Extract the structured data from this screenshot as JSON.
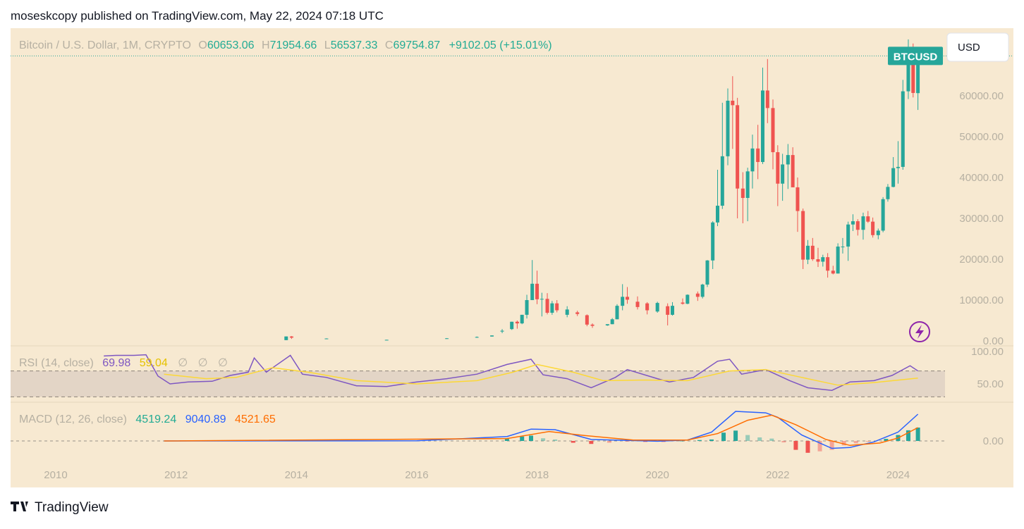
{
  "header": {
    "byline": "moseskcopy published on TradingView.com, May 22, 2024 07:18 UTC"
  },
  "toolbar": {
    "currency": "USD"
  },
  "footer": {
    "brand": "TradingView"
  },
  "chart_data": [
    {
      "type": "candlestick",
      "title": "Bitcoin / U.S. Dollar, 1M, CRYPTO",
      "symbol_label": "BTCUSD",
      "ohlc_labels": [
        "O",
        "H",
        "L",
        "C"
      ],
      "change_label": "+9102.05 (+15.01%)",
      "up_color": "#26a69a",
      "down_color": "#ef5350",
      "xlim": [
        2009.25,
        2024.78
      ],
      "xticks": [
        2010,
        2012,
        2014,
        2016,
        2018,
        2020,
        2022,
        2024
      ],
      "ylim": [
        -1030,
        76550
      ],
      "yticks": [
        {
          "value": 0,
          "label": "0.00"
        },
        {
          "value": 10000,
          "label": "10000.00"
        },
        {
          "value": 20000,
          "label": "20000.00"
        },
        {
          "value": 30000,
          "label": "30000.00"
        },
        {
          "value": 40000,
          "label": "40000.00"
        },
        {
          "value": 50000,
          "label": "50000.00"
        },
        {
          "value": 60000,
          "label": "60000.00"
        }
      ],
      "x": [
        2013.83,
        2013.92,
        2014.5,
        2015.5,
        2016.5,
        2017.0,
        2017.25,
        2017.42,
        2017.58,
        2017.67,
        2017.75,
        2017.83,
        2017.92,
        2018.0,
        2018.08,
        2018.17,
        2018.25,
        2018.33,
        2018.5,
        2018.67,
        2018.83,
        2018.92,
        2019.17,
        2019.25,
        2019.33,
        2019.42,
        2019.5,
        2019.67,
        2019.83,
        2020.0,
        2020.17,
        2020.25,
        2020.42,
        2020.5,
        2020.67,
        2020.75,
        2020.83,
        2020.92,
        2021.0,
        2021.08,
        2021.17,
        2021.25,
        2021.33,
        2021.42,
        2021.5,
        2021.58,
        2021.67,
        2021.75,
        2021.83,
        2021.92,
        2022.0,
        2022.08,
        2022.17,
        2022.25,
        2022.33,
        2022.42,
        2022.5,
        2022.58,
        2022.67,
        2022.75,
        2022.83,
        2022.92,
        2023.0,
        2023.08,
        2023.17,
        2023.25,
        2023.33,
        2023.42,
        2023.5,
        2023.58,
        2023.67,
        2023.75,
        2023.83,
        2023.92,
        2024.0,
        2024.08,
        2024.17,
        2024.25,
        2024.33
      ],
      "open": [
        200,
        1100,
        600,
        260,
        600,
        970,
        1080,
        2300,
        2900,
        4700,
        4300,
        6400,
        10000,
        14000,
        10200,
        10300,
        6900,
        9200,
        6400,
        7000,
        6300,
        4000,
        3800,
        4100,
        5300,
        8600,
        10800,
        9600,
        9200,
        7200,
        8500,
        6400,
        9400,
        9100,
        11600,
        10800,
        13800,
        19700,
        29000,
        33100,
        45200,
        58800,
        57700,
        37300,
        35000,
        41500,
        47100,
        43800,
        61300,
        57000,
        46200,
        38500,
        43200,
        45500,
        37600,
        31800,
        19900,
        23300,
        20000,
        19400,
        20500,
        17200,
        16500,
        23100,
        23100,
        28500,
        29300,
        27200,
        30500,
        29200,
        25900,
        27000,
        34700,
        37700,
        42300,
        42600,
        61100,
        71300,
        60653.06
      ],
      "high": [
        1100,
        1200,
        650,
        300,
        700,
        1100,
        1350,
        2900,
        4700,
        5000,
        6400,
        11300,
        19800,
        17200,
        11800,
        11700,
        9800,
        10000,
        8500,
        7400,
        6500,
        4300,
        4100,
        5600,
        9000,
        13900,
        13200,
        10900,
        9500,
        9600,
        9200,
        9500,
        10400,
        11400,
        12100,
        14000,
        19800,
        29300,
        41900,
        58300,
        61800,
        64800,
        59500,
        41300,
        42400,
        50500,
        52900,
        66900,
        69000,
        59100,
        47900,
        45800,
        48200,
        47400,
        40000,
        32400,
        24700,
        25200,
        22800,
        21100,
        21500,
        18400,
        23900,
        25200,
        29200,
        31000,
        29800,
        31400,
        31800,
        30200,
        27500,
        35200,
        38400,
        45000,
        48900,
        63900,
        73800,
        72800,
        71954.66
      ],
      "low": [
        200,
        500,
        550,
        250,
        500,
        750,
        1080,
        1900,
        2700,
        3000,
        4100,
        5500,
        10000,
        9000,
        6000,
        6500,
        6400,
        7000,
        5800,
        6100,
        3600,
        3200,
        3700,
        4100,
        5300,
        7500,
        9100,
        7700,
        6500,
        6900,
        3800,
        6200,
        8900,
        9000,
        9800,
        10400,
        13200,
        17600,
        28100,
        32300,
        43000,
        47000,
        30000,
        28800,
        29300,
        37300,
        39600,
        43300,
        53300,
        42000,
        33000,
        34300,
        37200,
        37700,
        26700,
        17600,
        18800,
        19600,
        18100,
        18200,
        15500,
        16300,
        16500,
        21400,
        19600,
        26900,
        25800,
        24800,
        28900,
        25300,
        24900,
        26600,
        34100,
        37600,
        38500,
        41900,
        59200,
        59600,
        56537.33
      ],
      "close": [
        1100,
        800,
        600,
        280,
        650,
        970,
        1350,
        2500,
        4700,
        4300,
        6400,
        10000,
        14000,
        10200,
        10300,
        6900,
        9200,
        7500,
        7700,
        6600,
        4000,
        3700,
        4100,
        5300,
        8600,
        10800,
        10100,
        8300,
        7500,
        9300,
        6400,
        8600,
        9100,
        11300,
        10800,
        13800,
        19700,
        29000,
        33100,
        45200,
        58800,
        57700,
        37300,
        35000,
        41500,
        47100,
        43800,
        61300,
        57000,
        46200,
        38500,
        43200,
        45500,
        37600,
        31800,
        19900,
        23300,
        20000,
        19400,
        20500,
        17200,
        16500,
        23100,
        23100,
        28500,
        29300,
        27200,
        30500,
        29200,
        25900,
        27000,
        34700,
        37700,
        42300,
        42600,
        61100,
        71300,
        60700,
        69754.87
      ]
    },
    {
      "type": "line",
      "title": "RSI (14, close)",
      "legend_extra": [
        "∅",
        "∅",
        "∅"
      ],
      "ylim": [
        22.8,
        107.6
      ],
      "yticks": [
        {
          "value": 50,
          "label": "50.00"
        },
        {
          "value": 100,
          "label": "100.00"
        }
      ],
      "levels": [
        70,
        30
      ],
      "band_color": "#e3d5c6",
      "series": [
        {
          "color": "#7e57c2",
          "x": [
            2010.8,
            2011.0,
            2011.3,
            2011.5,
            2011.7,
            2011.9,
            2012.2,
            2012.6,
            2012.9,
            2013.2,
            2013.3,
            2013.5,
            2013.9,
            2014.1,
            2014.5,
            2015.0,
            2015.5,
            2016.0,
            2016.5,
            2017.0,
            2017.5,
            2017.9,
            2018.1,
            2018.5,
            2018.9,
            2019.3,
            2019.5,
            2020.0,
            2020.2,
            2020.6,
            2021.0,
            2021.2,
            2021.4,
            2021.8,
            2022.2,
            2022.5,
            2022.9,
            2023.2,
            2023.6,
            2023.9,
            2024.2,
            2024.33
          ],
          "values": [
            93,
            94,
            94,
            95,
            62,
            50,
            53,
            54,
            63,
            68,
            90,
            68,
            94,
            65,
            60,
            47,
            46,
            53,
            58,
            65,
            80,
            88,
            64,
            58,
            44,
            60,
            72,
            58,
            53,
            60,
            85,
            88,
            65,
            72,
            55,
            44,
            40,
            53,
            55,
            63,
            78,
            69.98
          ]
        },
        {
          "color": "#fdd835",
          "x": [
            2011.8,
            2012.5,
            2013.0,
            2013.6,
            2014.2,
            2015.0,
            2016.0,
            2017.0,
            2017.6,
            2018.0,
            2018.6,
            2019.1,
            2019.8,
            2020.5,
            2021.2,
            2021.8,
            2022.4,
            2023.0,
            2023.6,
            2024.33
          ],
          "values": [
            65,
            58,
            60,
            75,
            68,
            55,
            50,
            55,
            68,
            80,
            68,
            55,
            56,
            55,
            70,
            72,
            60,
            48,
            52,
            59.04
          ]
        }
      ]
    },
    {
      "type": "line",
      "title": "MACD (12, 26, close)",
      "ylim": [
        -6900,
        12850
      ],
      "yticks": [
        {
          "value": 0,
          "label": "0.00"
        }
      ],
      "histogram": {
        "up_color": "#26a69a",
        "down_color": "#ef5350",
        "x": [
          2017.5,
          2017.75,
          2017.9,
          2018.1,
          2018.3,
          2018.6,
          2018.9,
          2019.2,
          2019.5,
          2019.8,
          2020.1,
          2020.4,
          2020.7,
          2020.9,
          2021.1,
          2021.3,
          2021.5,
          2021.7,
          2021.9,
          2022.1,
          2022.3,
          2022.5,
          2022.7,
          2022.9,
          2023.1,
          2023.3,
          2023.5,
          2023.8,
          2024.0,
          2024.17,
          2024.33
        ],
        "values": [
          700,
          1500,
          1800,
          900,
          500,
          -600,
          -1000,
          -600,
          -100,
          -300,
          -300,
          0,
          300,
          500,
          2800,
          3500,
          2000,
          1200,
          800,
          -500,
          -3000,
          -4000,
          -3500,
          -3000,
          -1500,
          -800,
          -200,
          700,
          2000,
          3600,
          4519.24
        ]
      },
      "series": [
        {
          "color": "#2962ff",
          "x": [
            2011.8,
            2016.0,
            2017.5,
            2017.9,
            2018.3,
            2018.9,
            2019.5,
            2020.0,
            2020.5,
            2020.9,
            2021.3,
            2021.8,
            2022.0,
            2022.4,
            2022.9,
            2023.2,
            2023.6,
            2024.0,
            2024.33
          ],
          "values": [
            0,
            50,
            1500,
            4000,
            3800,
            500,
            200,
            -100,
            300,
            3000,
            10000,
            9500,
            8000,
            2000,
            -2500,
            -2200,
            -300,
            3000,
            9040.89
          ]
        },
        {
          "color": "#ff6d00",
          "x": [
            2011.8,
            2017.5,
            2018.2,
            2018.8,
            2019.6,
            2020.5,
            2021.0,
            2021.5,
            2021.9,
            2022.3,
            2022.8,
            2023.2,
            2023.7,
            2024.0,
            2024.33
          ],
          "values": [
            0,
            800,
            3200,
            1800,
            300,
            300,
            2500,
            7000,
            8700,
            5500,
            500,
            -1500,
            -700,
            1000,
            4521.65
          ]
        }
      ]
    }
  ]
}
